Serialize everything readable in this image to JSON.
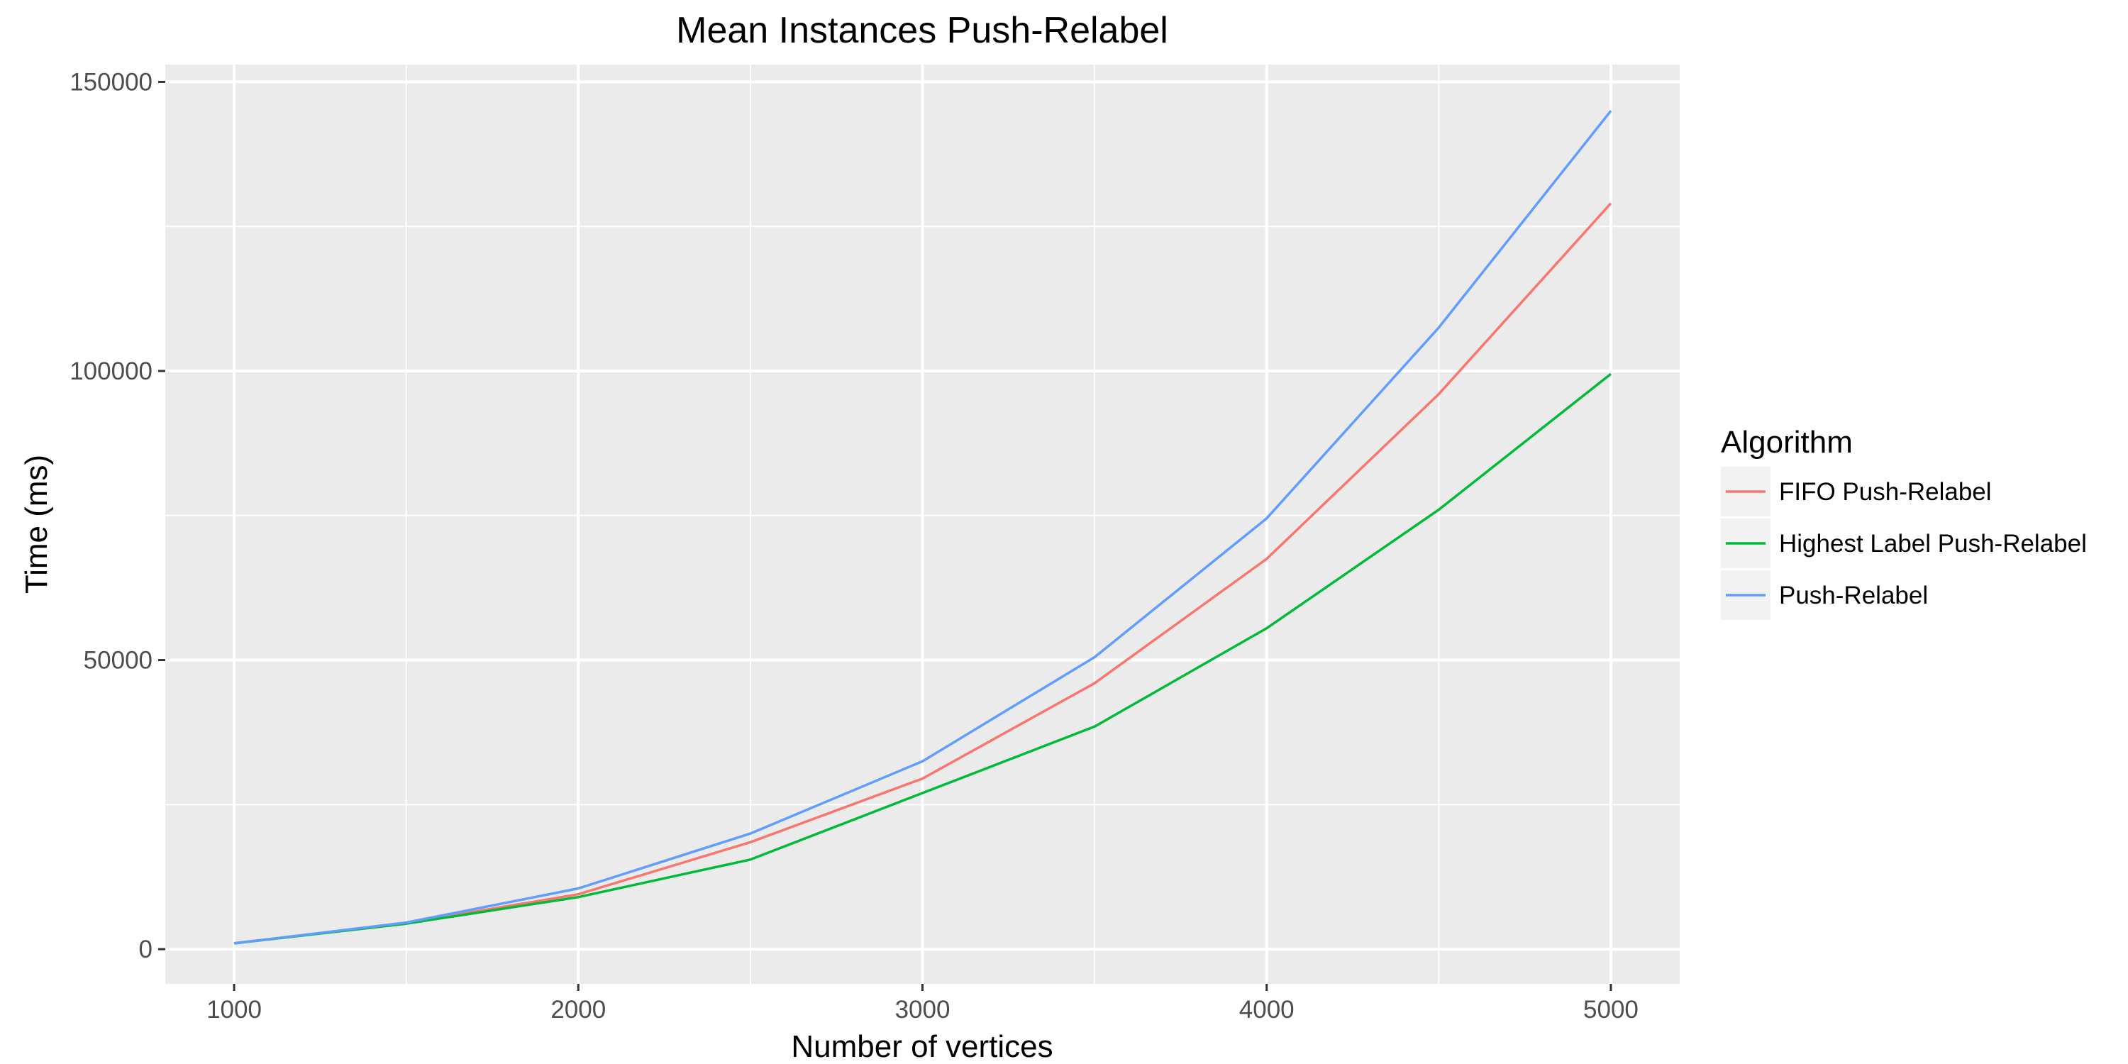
{
  "chart_data": {
    "type": "line",
    "title": "Mean Instances Push-Relabel",
    "xlabel": "Number of vertices",
    "ylabel": "Time (ms)",
    "x": [
      1000,
      1500,
      2000,
      2500,
      3000,
      3500,
      4000,
      4500,
      5000
    ],
    "xlim": [
      800,
      5200
    ],
    "ylim": [
      -6000,
      153000
    ],
    "x_ticks": [
      "1000",
      "2000",
      "3000",
      "4000",
      "5000"
    ],
    "y_ticks": [
      "0",
      "50000",
      "100000",
      "150000"
    ],
    "grid": true,
    "legend": {
      "title": "Algorithm",
      "placement": "right"
    },
    "series": [
      {
        "name": "FIFO Push-Relabel",
        "color": "#F8766D",
        "values": [
          1000,
          4500,
          9500,
          18500,
          29500,
          46000,
          67500,
          96000,
          129000
        ]
      },
      {
        "name": "Highest Label Push-Relabel",
        "color": "#00BA38",
        "values": [
          1000,
          4400,
          9000,
          15500,
          27000,
          38500,
          55500,
          76000,
          99500
        ]
      },
      {
        "name": "Push-Relabel",
        "color": "#619CFF",
        "values": [
          1000,
          4600,
          10500,
          20000,
          32500,
          50500,
          74500,
          107500,
          145000
        ]
      }
    ]
  }
}
